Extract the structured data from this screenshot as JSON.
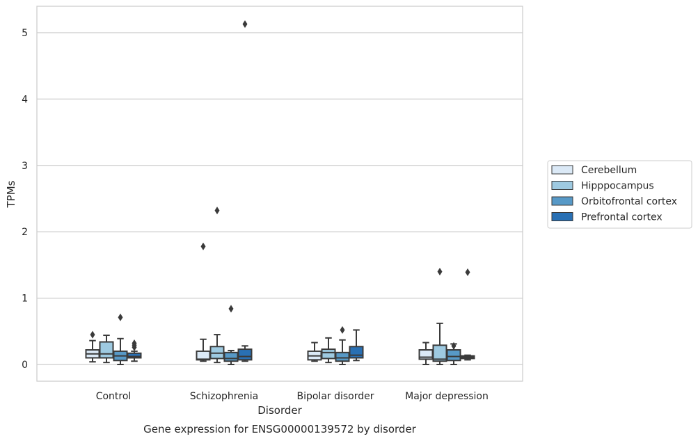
{
  "chart_data": {
    "type": "box",
    "title": "",
    "caption": "Gene expression for ENSG00000139572 by disorder",
    "xlabel": "Disorder",
    "ylabel": "TPMs",
    "ylim": [
      -0.25,
      5.4
    ],
    "yticks": [
      0,
      1,
      2,
      3,
      4,
      5
    ],
    "categories": [
      "Control",
      "Schizophrenia",
      "Bipolar disorder",
      "Major depression"
    ],
    "grid": "horizontal",
    "legend_position": "right",
    "series": [
      {
        "name": "Cerebellum",
        "color": "#dbe9f6",
        "boxes": [
          {
            "whislo": 0.04,
            "q1": 0.1,
            "med": 0.16,
            "q3": 0.22,
            "whishi": 0.36,
            "fliers": [
              0.45
            ]
          },
          {
            "whislo": 0.05,
            "q1": 0.07,
            "med": 0.08,
            "q3": 0.2,
            "whishi": 0.38,
            "fliers": [
              1.78
            ]
          },
          {
            "whislo": 0.05,
            "q1": 0.07,
            "med": 0.13,
            "q3": 0.2,
            "whishi": 0.33,
            "fliers": []
          },
          {
            "whislo": 0.0,
            "q1": 0.08,
            "med": 0.11,
            "q3": 0.22,
            "whishi": 0.33,
            "fliers": []
          }
        ]
      },
      {
        "name": "Hipppocampus",
        "color": "#9ecae1",
        "boxes": [
          {
            "whislo": 0.03,
            "q1": 0.1,
            "med": 0.16,
            "q3": 0.34,
            "whishi": 0.44,
            "fliers": []
          },
          {
            "whislo": 0.03,
            "q1": 0.09,
            "med": 0.17,
            "q3": 0.27,
            "whishi": 0.45,
            "fliers": [
              2.32
            ]
          },
          {
            "whislo": 0.03,
            "q1": 0.09,
            "med": 0.18,
            "q3": 0.23,
            "whishi": 0.4,
            "fliers": []
          },
          {
            "whislo": 0.0,
            "q1": 0.05,
            "med": 0.08,
            "q3": 0.29,
            "whishi": 0.62,
            "fliers": [
              1.4
            ]
          }
        ]
      },
      {
        "name": "Orbitofrontal cortex",
        "color": "#5799c7",
        "boxes": [
          {
            "whislo": 0.0,
            "q1": 0.06,
            "med": 0.13,
            "q3": 0.2,
            "whishi": 0.39,
            "fliers": [
              0.71
            ]
          },
          {
            "whislo": 0.0,
            "q1": 0.05,
            "med": 0.09,
            "q3": 0.18,
            "whishi": 0.21,
            "fliers": [
              0.84
            ]
          },
          {
            "whislo": 0.0,
            "q1": 0.05,
            "med": 0.1,
            "q3": 0.18,
            "whishi": 0.37,
            "fliers": [
              0.52
            ]
          },
          {
            "whislo": 0.0,
            "q1": 0.06,
            "med": 0.12,
            "q3": 0.22,
            "whishi": 0.31,
            "fliers": [
              0.28
            ]
          }
        ]
      },
      {
        "name": "Prefrontal cortex",
        "color": "#2970b4",
        "boxes": [
          {
            "whislo": 0.05,
            "q1": 0.1,
            "med": 0.12,
            "q3": 0.17,
            "whishi": 0.2,
            "fliers": [
              0.26,
              0.29,
              0.32
            ]
          },
          {
            "whislo": 0.05,
            "q1": 0.07,
            "med": 0.12,
            "q3": 0.23,
            "whishi": 0.28,
            "fliers": [
              5.13
            ]
          },
          {
            "whislo": 0.06,
            "q1": 0.1,
            "med": 0.14,
            "q3": 0.27,
            "whishi": 0.52,
            "fliers": []
          },
          {
            "whislo": 0.07,
            "q1": 0.09,
            "med": 0.11,
            "q3": 0.13,
            "whishi": 0.14,
            "fliers": [
              1.39
            ]
          }
        ]
      }
    ]
  }
}
